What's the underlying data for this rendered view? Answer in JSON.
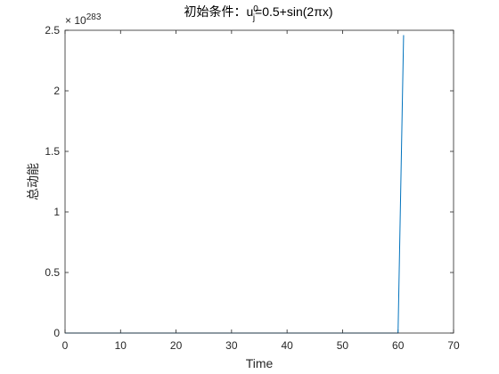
{
  "chart_data": {
    "type": "line",
    "title_prefix": "初始条件：u",
    "title_sup": "0",
    "title_sub": "j",
    "title_suffix": "=0.5+sin(2πx)",
    "xlabel": "Time",
    "ylabel": "总动能",
    "y_exponent_base": "× 10",
    "y_exponent_power": "283",
    "xlim": [
      0,
      70
    ],
    "ylim": [
      0,
      2.5
    ],
    "x_ticks": [
      "0",
      "10",
      "20",
      "30",
      "40",
      "50",
      "60",
      "70"
    ],
    "y_ticks": [
      "0",
      "0.5",
      "1",
      "1.5",
      "2",
      "2.5"
    ],
    "grid": false,
    "series": [
      {
        "color": "#0072BD",
        "x": [
          0,
          10,
          20,
          30,
          40,
          50,
          60,
          61
        ],
        "y": [
          0,
          0,
          0,
          0,
          0,
          0,
          0,
          2.46
        ]
      }
    ]
  }
}
